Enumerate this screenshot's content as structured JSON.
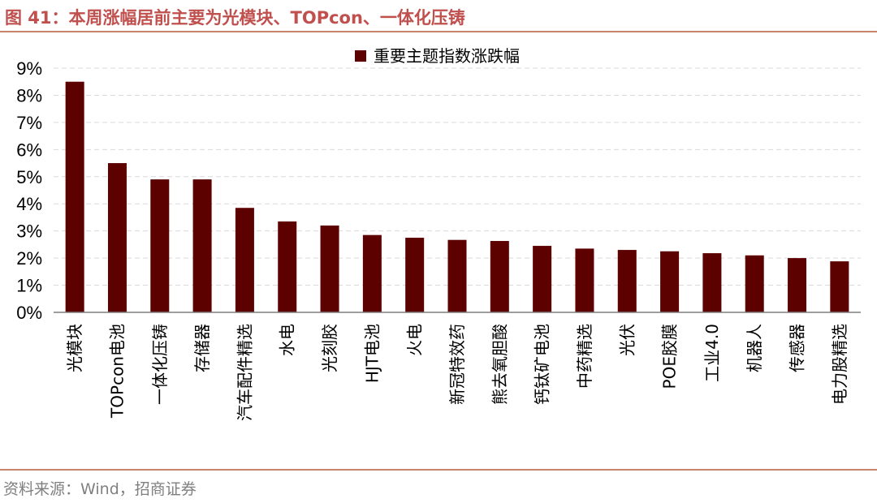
{
  "figure": {
    "title": "图 41：本周涨幅居前主要为光模块、TOPcon、一体化压铸",
    "source": "资料来源：Wind，招商证券"
  },
  "colors": {
    "bar": "#5c0000",
    "title": "#c0504d",
    "rule": "#c8856a",
    "grid": "#d9d9d9",
    "source": "#7f7f7f"
  },
  "chart_data": {
    "type": "bar",
    "categories": [
      "光模块",
      "TOPcon电池",
      "一体化压铸",
      "存储器",
      "汽车配件精选",
      "水电",
      "光刻胶",
      "HJT电池",
      "火电",
      "新冠特效药",
      "熊去氧胆酸",
      "钙钛矿电池",
      "中药精选",
      "光伏",
      "POE胶膜",
      "工业4.0",
      "机器人",
      "传感器",
      "电力股精选"
    ],
    "series": [
      {
        "name": "重要主题指数涨跌幅",
        "values": [
          8.5,
          5.5,
          4.9,
          4.9,
          3.85,
          3.35,
          3.2,
          2.85,
          2.75,
          2.67,
          2.63,
          2.45,
          2.35,
          2.3,
          2.25,
          2.18,
          2.1,
          2.0,
          1.88
        ]
      }
    ],
    "ylim": [
      0,
      9
    ],
    "yticks": [
      "0%",
      "1%",
      "2%",
      "3%",
      "4%",
      "5%",
      "6%",
      "7%",
      "8%",
      "9%"
    ],
    "grid": true,
    "legend_position": "top-center",
    "xlabel": "",
    "ylabel": ""
  }
}
